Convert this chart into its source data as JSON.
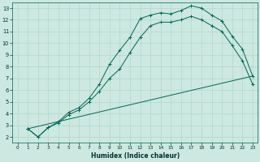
{
  "title": "",
  "xlabel": "Humidex (Indice chaleur)",
  "ylabel": "",
  "bg_color": "#cce8e0",
  "grid_color": "#b0d8cc",
  "line_color": "#006655",
  "xlim": [
    -0.5,
    23.5
  ],
  "ylim": [
    1.5,
    13.5
  ],
  "xticks": [
    0,
    1,
    2,
    3,
    4,
    5,
    6,
    7,
    8,
    9,
    10,
    11,
    12,
    13,
    14,
    15,
    16,
    17,
    18,
    19,
    20,
    21,
    22,
    23
  ],
  "yticks": [
    2,
    3,
    4,
    5,
    6,
    7,
    8,
    9,
    10,
    11,
    12,
    13
  ],
  "line1_x": [
    1,
    2,
    3,
    4,
    5,
    6,
    7,
    8,
    9,
    10,
    11,
    12,
    13,
    14,
    15,
    16,
    17,
    18,
    19,
    20,
    21,
    22,
    23
  ],
  "line1_y": [
    2.7,
    2.0,
    2.8,
    3.3,
    4.1,
    4.5,
    5.3,
    6.5,
    8.2,
    9.4,
    10.5,
    12.1,
    12.4,
    12.6,
    12.5,
    12.8,
    13.2,
    13.0,
    12.4,
    11.9,
    10.6,
    9.5,
    7.2
  ],
  "line2_x": [
    1,
    2,
    3,
    4,
    5,
    6,
    7,
    8,
    9,
    10,
    11,
    12,
    13,
    14,
    15,
    16,
    17,
    18,
    19,
    20,
    21,
    22,
    23
  ],
  "line2_y": [
    2.7,
    2.0,
    2.8,
    3.2,
    3.9,
    4.3,
    5.0,
    5.9,
    7.0,
    7.8,
    9.2,
    10.5,
    11.5,
    11.8,
    11.8,
    12.0,
    12.3,
    12.0,
    11.5,
    11.0,
    9.8,
    8.5,
    6.5
  ],
  "line3_x": [
    1,
    23
  ],
  "line3_y": [
    2.7,
    7.2
  ]
}
